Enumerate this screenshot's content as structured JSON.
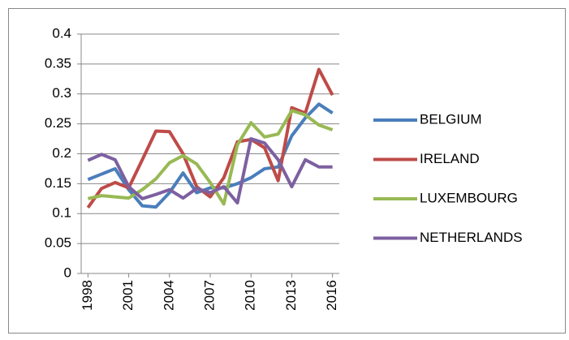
{
  "chart_data": {
    "type": "line",
    "x": [
      1998,
      1999,
      2000,
      2001,
      2002,
      2003,
      2004,
      2005,
      2006,
      2007,
      2008,
      2009,
      2010,
      2011,
      2012,
      2013,
      2014,
      2015,
      2016
    ],
    "xlim": [
      1997.5,
      2016.5
    ],
    "xticks": [
      1998,
      2001,
      2004,
      2007,
      2010,
      2013,
      2016
    ],
    "ylim": [
      0,
      0.4
    ],
    "yticks": [
      0,
      0.05,
      0.1,
      0.15,
      0.2,
      0.25,
      0.3,
      0.35,
      0.4
    ],
    "grid": true,
    "legend": "right",
    "series": [
      {
        "name": "BELGIUM",
        "color": "#4a7ebb",
        "values": [
          0.157,
          0.166,
          0.175,
          0.14,
          0.113,
          0.111,
          0.135,
          0.168,
          0.135,
          0.143,
          0.143,
          0.15,
          0.16,
          0.175,
          0.178,
          0.23,
          0.26,
          0.283,
          0.268
        ]
      },
      {
        "name": "IRELAND",
        "color": "#be4b48",
        "values": [
          0.11,
          0.142,
          0.152,
          0.143,
          0.19,
          0.238,
          0.237,
          0.2,
          0.145,
          0.128,
          0.16,
          0.22,
          0.224,
          0.21,
          0.155,
          0.277,
          0.268,
          0.341,
          0.298
        ]
      },
      {
        "name": "LUXEMBOURG",
        "color": "#98b954",
        "values": [
          0.125,
          0.13,
          0.128,
          0.126,
          0.14,
          0.158,
          0.185,
          0.197,
          0.183,
          0.152,
          0.116,
          0.215,
          0.252,
          0.228,
          0.233,
          0.272,
          0.265,
          0.248,
          0.24
        ]
      },
      {
        "name": "NETHERLANDS",
        "color": "#7d60a0",
        "values": [
          0.189,
          0.199,
          0.19,
          0.145,
          0.125,
          0.132,
          0.14,
          0.126,
          0.142,
          0.135,
          0.145,
          0.118,
          0.225,
          0.218,
          0.19,
          0.145,
          0.19,
          0.178,
          0.178
        ]
      }
    ]
  }
}
